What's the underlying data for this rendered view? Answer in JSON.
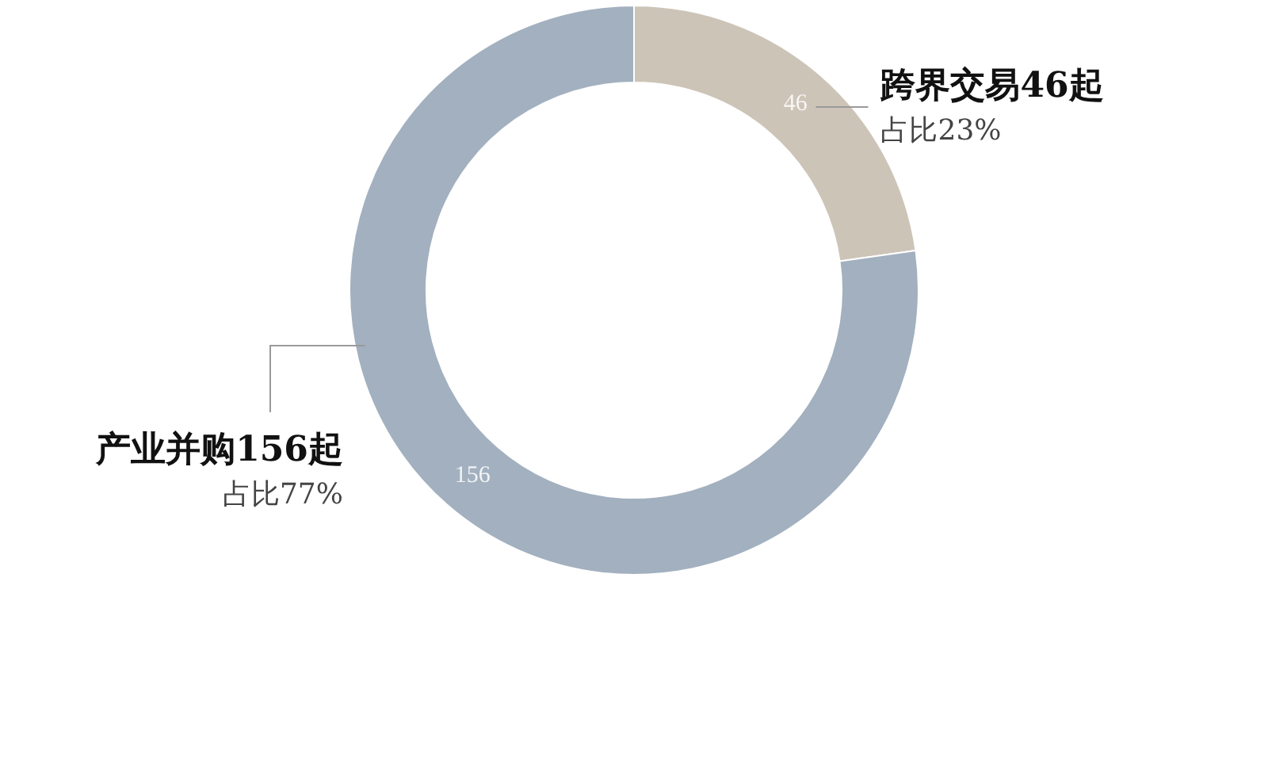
{
  "chart_data": {
    "type": "donut",
    "categories": [
      "跨界交易46起",
      "产业并购156起"
    ],
    "values": [
      46,
      156
    ],
    "colors": [
      "#cdc4b8",
      "#a2b0bf"
    ],
    "data_labels": true,
    "annotations": [
      "占比23%",
      "占比77%"
    ]
  }
}
